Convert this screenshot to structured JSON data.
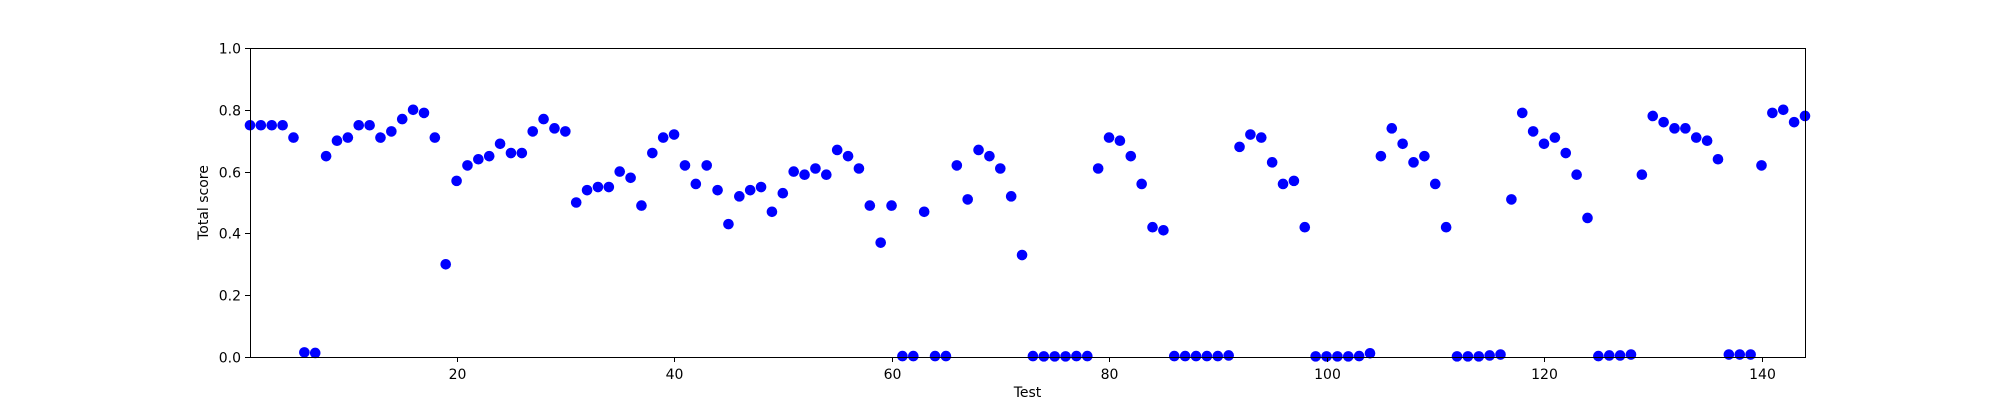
{
  "chart_data": {
    "type": "scatter",
    "title": "",
    "xlabel": "Test",
    "ylabel": "Total score",
    "xlim": [
      1,
      144
    ],
    "ylim": [
      0.0,
      1.0
    ],
    "grid": false,
    "marker_color": "#0000ff",
    "xticks": [
      20,
      40,
      60,
      80,
      100,
      120,
      140
    ],
    "yticks": [
      0.0,
      0.2,
      0.4,
      0.6,
      0.8,
      1.0
    ],
    "xtick_labels": [
      "20",
      "40",
      "60",
      "80",
      "100",
      "120",
      "140"
    ],
    "ytick_labels": [
      "0.0",
      "0.2",
      "0.4",
      "0.6",
      "0.8",
      "1.0"
    ],
    "series": [
      {
        "name": "Total score",
        "points": [
          [
            1,
            0.75
          ],
          [
            2,
            0.75
          ],
          [
            3,
            0.75
          ],
          [
            4,
            0.75
          ],
          [
            5,
            0.71
          ],
          [
            6,
            0.015
          ],
          [
            7,
            0.013
          ],
          [
            8,
            0.65
          ],
          [
            9,
            0.7
          ],
          [
            10,
            0.71
          ],
          [
            11,
            0.75
          ],
          [
            12,
            0.75
          ],
          [
            13,
            0.71
          ],
          [
            14,
            0.73
          ],
          [
            15,
            0.77
          ],
          [
            16,
            0.8
          ],
          [
            17,
            0.79
          ],
          [
            18,
            0.71
          ],
          [
            19,
            0.3
          ],
          [
            20,
            0.57
          ],
          [
            21,
            0.62
          ],
          [
            22,
            0.64
          ],
          [
            23,
            0.65
          ],
          [
            24,
            0.69
          ],
          [
            25,
            0.66
          ],
          [
            26,
            0.66
          ],
          [
            27,
            0.73
          ],
          [
            28,
            0.77
          ],
          [
            29,
            0.74
          ],
          [
            30,
            0.73
          ],
          [
            31,
            0.5
          ],
          [
            32,
            0.54
          ],
          [
            33,
            0.55
          ],
          [
            34,
            0.55
          ],
          [
            35,
            0.6
          ],
          [
            36,
            0.58
          ],
          [
            37,
            0.49
          ],
          [
            38,
            0.66
          ],
          [
            39,
            0.71
          ],
          [
            40,
            0.72
          ],
          [
            41,
            0.62
          ],
          [
            42,
            0.56
          ],
          [
            43,
            0.62
          ],
          [
            44,
            0.54
          ],
          [
            45,
            0.43
          ],
          [
            46,
            0.52
          ],
          [
            47,
            0.54
          ],
          [
            48,
            0.55
          ],
          [
            49,
            0.47
          ],
          [
            50,
            0.53
          ],
          [
            51,
            0.6
          ],
          [
            52,
            0.59
          ],
          [
            53,
            0.61
          ],
          [
            54,
            0.59
          ],
          [
            55,
            0.67
          ],
          [
            56,
            0.65
          ],
          [
            57,
            0.61
          ],
          [
            58,
            0.49
          ],
          [
            59,
            0.37
          ],
          [
            60,
            0.49
          ],
          [
            61,
            0.003
          ],
          [
            62,
            0.003
          ],
          [
            63,
            0.47
          ],
          [
            64,
            0.003
          ],
          [
            65,
            0.003
          ],
          [
            66,
            0.62
          ],
          [
            67,
            0.51
          ],
          [
            68,
            0.67
          ],
          [
            69,
            0.65
          ],
          [
            70,
            0.61
          ],
          [
            71,
            0.52
          ],
          [
            72,
            0.33
          ],
          [
            73,
            0.003
          ],
          [
            74,
            0.002
          ],
          [
            75,
            0.002
          ],
          [
            76,
            0.002
          ],
          [
            77,
            0.003
          ],
          [
            78,
            0.003
          ],
          [
            79,
            0.61
          ],
          [
            80,
            0.71
          ],
          [
            81,
            0.7
          ],
          [
            82,
            0.65
          ],
          [
            83,
            0.56
          ],
          [
            84,
            0.42
          ],
          [
            85,
            0.41
          ],
          [
            86,
            0.003
          ],
          [
            87,
            0.003
          ],
          [
            88,
            0.003
          ],
          [
            89,
            0.003
          ],
          [
            90,
            0.003
          ],
          [
            91,
            0.005
          ],
          [
            92,
            0.68
          ],
          [
            93,
            0.72
          ],
          [
            94,
            0.71
          ],
          [
            95,
            0.63
          ],
          [
            96,
            0.56
          ],
          [
            97,
            0.57
          ],
          [
            98,
            0.42
          ],
          [
            99,
            0.002
          ],
          [
            100,
            0.002
          ],
          [
            101,
            0.002
          ],
          [
            102,
            0.002
          ],
          [
            103,
            0.003
          ],
          [
            104,
            0.012
          ],
          [
            105,
            0.65
          ],
          [
            106,
            0.74
          ],
          [
            107,
            0.69
          ],
          [
            108,
            0.63
          ],
          [
            109,
            0.65
          ],
          [
            110,
            0.56
          ],
          [
            111,
            0.42
          ],
          [
            112,
            0.002
          ],
          [
            113,
            0.002
          ],
          [
            114,
            0.002
          ],
          [
            115,
            0.005
          ],
          [
            116,
            0.008
          ],
          [
            117,
            0.51
          ],
          [
            118,
            0.79
          ],
          [
            119,
            0.73
          ],
          [
            120,
            0.69
          ],
          [
            121,
            0.71
          ],
          [
            122,
            0.66
          ],
          [
            123,
            0.59
          ],
          [
            124,
            0.45
          ],
          [
            125,
            0.003
          ],
          [
            126,
            0.005
          ],
          [
            127,
            0.005
          ],
          [
            128,
            0.008
          ],
          [
            129,
            0.59
          ],
          [
            130,
            0.78
          ],
          [
            131,
            0.76
          ],
          [
            132,
            0.74
          ],
          [
            133,
            0.74
          ],
          [
            134,
            0.71
          ],
          [
            135,
            0.7
          ],
          [
            136,
            0.64
          ],
          [
            137,
            0.008
          ],
          [
            138,
            0.008
          ],
          [
            139,
            0.008
          ],
          [
            140,
            0.62
          ],
          [
            141,
            0.79
          ],
          [
            142,
            0.8
          ],
          [
            143,
            0.76
          ],
          [
            144,
            0.78
          ]
        ]
      }
    ]
  }
}
